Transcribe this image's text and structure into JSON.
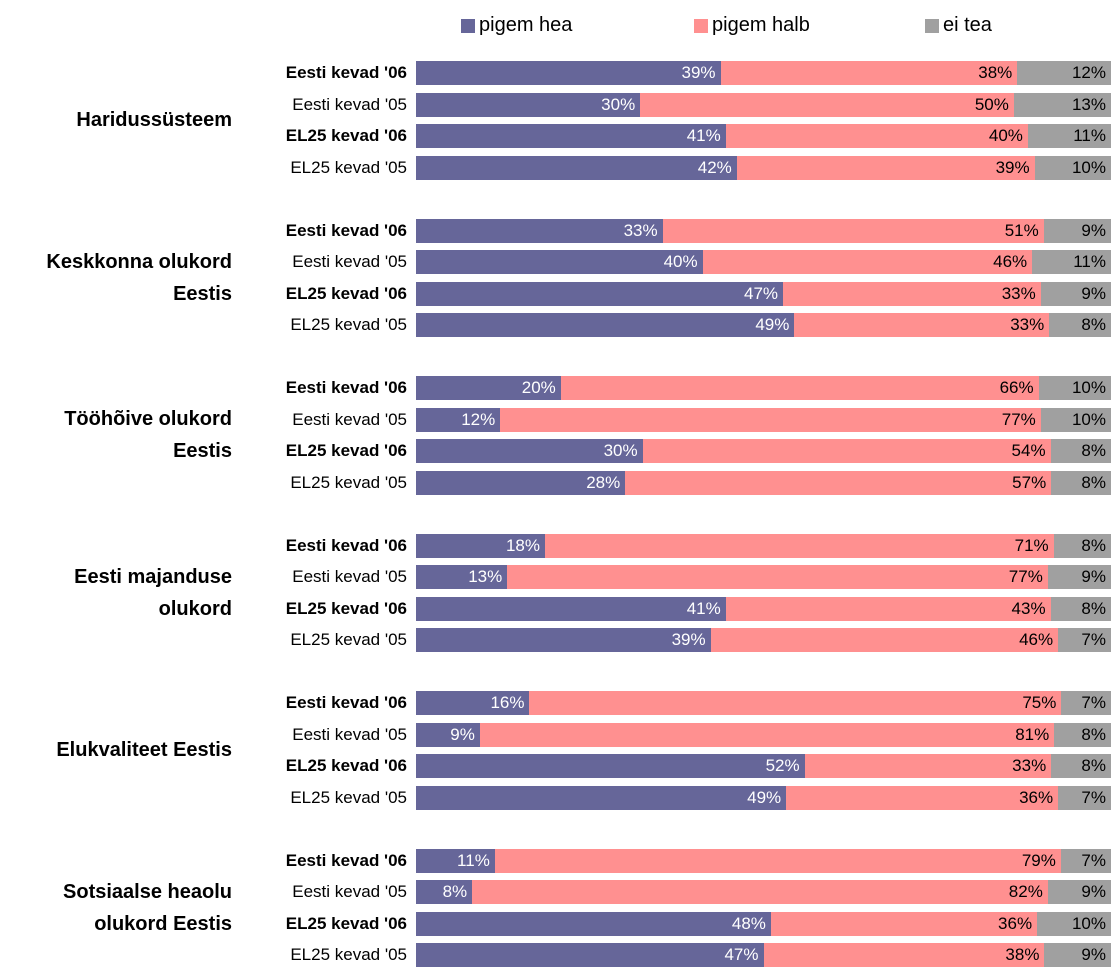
{
  "chart_data": {
    "type": "bar",
    "orientation": "horizontal",
    "stacked": true,
    "normalized": true,
    "title": "",
    "legend_position": "top",
    "series": [
      {
        "name": "pigem hea",
        "color": "#666699"
      },
      {
        "name": "pigem halb",
        "color": "#ff9090"
      },
      {
        "name": "ei tea",
        "color": "#a0a0a0"
      }
    ],
    "groups": [
      {
        "label_lines": [
          "Haridussüsteem"
        ],
        "rows": [
          {
            "label": "Eesti kevad '06",
            "bold": true,
            "values": [
              39,
              38,
              12
            ],
            "labels": [
              "39%",
              "38%",
              "12%"
            ]
          },
          {
            "label": "Eesti kevad '05",
            "bold": false,
            "values": [
              30,
              50,
              13
            ],
            "labels": [
              "30%",
              "50%",
              "13%"
            ]
          },
          {
            "label": "EL25 kevad '06",
            "bold": true,
            "values": [
              41,
              40,
              11
            ],
            "labels": [
              "41%",
              "40%",
              "11%"
            ]
          },
          {
            "label": "EL25 kevad '05",
            "bold": false,
            "values": [
              42,
              39,
              10
            ],
            "labels": [
              "42%",
              "39%",
              "10%"
            ]
          }
        ]
      },
      {
        "label_lines": [
          "Keskkonna olukord",
          "Eestis"
        ],
        "rows": [
          {
            "label": "Eesti kevad '06",
            "bold": true,
            "values": [
              33,
              51,
              9
            ],
            "labels": [
              "33%",
              "51%",
              "9%"
            ]
          },
          {
            "label": "Eesti kevad '05",
            "bold": false,
            "values": [
              40,
              46,
              11
            ],
            "labels": [
              "40%",
              "46%",
              "11%"
            ]
          },
          {
            "label": "EL25 kevad '06",
            "bold": true,
            "values": [
              47,
              33,
              9
            ],
            "labels": [
              "47%",
              "33%",
              "9%"
            ]
          },
          {
            "label": "EL25 kevad '05",
            "bold": false,
            "values": [
              49,
              33,
              8
            ],
            "labels": [
              "49%",
              "33%",
              "8%"
            ]
          }
        ]
      },
      {
        "label_lines": [
          "Tööhõive olukord",
          "Eestis"
        ],
        "rows": [
          {
            "label": "Eesti kevad '06",
            "bold": true,
            "values": [
              20,
              66,
              10
            ],
            "labels": [
              "20%",
              "66%",
              "10%"
            ]
          },
          {
            "label": "Eesti kevad '05",
            "bold": false,
            "values": [
              12,
              77,
              10
            ],
            "labels": [
              "12%",
              "77%",
              "10%"
            ]
          },
          {
            "label": "EL25 kevad '06",
            "bold": true,
            "values": [
              30,
              54,
              8
            ],
            "labels": [
              "30%",
              "54%",
              "8%"
            ]
          },
          {
            "label": "EL25 kevad '05",
            "bold": false,
            "values": [
              28,
              57,
              8
            ],
            "labels": [
              "28%",
              "57%",
              "8%"
            ]
          }
        ]
      },
      {
        "label_lines": [
          "Eesti majanduse",
          "olukord"
        ],
        "rows": [
          {
            "label": "Eesti kevad '06",
            "bold": true,
            "values": [
              18,
              71,
              8
            ],
            "labels": [
              "18%",
              "71%",
              "8%"
            ]
          },
          {
            "label": "Eesti kevad '05",
            "bold": false,
            "values": [
              13,
              77,
              9
            ],
            "labels": [
              "13%",
              "77%",
              "9%"
            ]
          },
          {
            "label": "EL25 kevad '06",
            "bold": true,
            "values": [
              41,
              43,
              8
            ],
            "labels": [
              "41%",
              "43%",
              "8%"
            ]
          },
          {
            "label": "EL25 kevad '05",
            "bold": false,
            "values": [
              39,
              46,
              7
            ],
            "labels": [
              "39%",
              "46%",
              "7%"
            ]
          }
        ]
      },
      {
        "label_lines": [
          "Elukvaliteet Eestis"
        ],
        "rows": [
          {
            "label": "Eesti kevad '06",
            "bold": true,
            "values": [
              16,
              75,
              7
            ],
            "labels": [
              "16%",
              "75%",
              "7%"
            ]
          },
          {
            "label": "Eesti kevad '05",
            "bold": false,
            "values": [
              9,
              81,
              8
            ],
            "labels": [
              "9%",
              "81%",
              "8%"
            ]
          },
          {
            "label": "EL25 kevad '06",
            "bold": true,
            "values": [
              52,
              33,
              8
            ],
            "labels": [
              "52%",
              "33%",
              "8%"
            ]
          },
          {
            "label": "EL25 kevad '05",
            "bold": false,
            "values": [
              49,
              36,
              7
            ],
            "labels": [
              "49%",
              "36%",
              "7%"
            ]
          }
        ]
      },
      {
        "label_lines": [
          "Sotsiaalse heaolu",
          "olukord Eestis"
        ],
        "rows": [
          {
            "label": "Eesti kevad '06",
            "bold": true,
            "values": [
              11,
              79,
              7
            ],
            "labels": [
              "11%",
              "79%",
              "7%"
            ]
          },
          {
            "label": "Eesti kevad '05",
            "bold": false,
            "values": [
              8,
              82,
              9
            ],
            "labels": [
              "8%",
              "82%",
              "9%"
            ]
          },
          {
            "label": "EL25 kevad '06",
            "bold": true,
            "values": [
              48,
              36,
              10
            ],
            "labels": [
              "48%",
              "36%",
              "10%"
            ]
          },
          {
            "label": "EL25 kevad '05",
            "bold": false,
            "values": [
              47,
              38,
              9
            ],
            "labels": [
              "47%",
              "38%",
              "9%"
            ]
          }
        ]
      }
    ]
  }
}
